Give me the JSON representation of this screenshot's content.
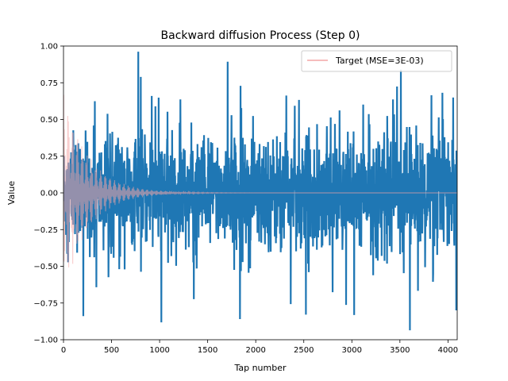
{
  "chart_data": {
    "type": "line",
    "title": "Backward diffusion Process (Step 0)",
    "xlabel": "Tap number",
    "ylabel": "Value",
    "xlim": [
      0,
      4096
    ],
    "ylim": [
      -1.0,
      1.0
    ],
    "xticks": [
      0,
      500,
      1000,
      1500,
      2000,
      2500,
      3000,
      3500,
      4000
    ],
    "xtick_labels": [
      "0",
      "500",
      "1000",
      "1500",
      "2000",
      "2500",
      "3000",
      "3500",
      "4000"
    ],
    "yticks": [
      -1.0,
      -0.75,
      -0.5,
      -0.25,
      0.0,
      0.25,
      0.5,
      0.75,
      1.0
    ],
    "ytick_labels": [
      "−1.00",
      "−0.75",
      "−0.50",
      "−0.25",
      "0.00",
      "0.25",
      "0.50",
      "0.75",
      "1.00"
    ],
    "grid": false,
    "legend_position": "top-right",
    "series": [
      {
        "name": "",
        "color": "#1f77b4",
        "description_values": "noisy signal, dense oscillation between about -0.5 and 0.5 with spikes",
        "num_points": 4096,
        "x_range": [
          0,
          4096
        ],
        "typical_amplitude": 0.45,
        "max_value": 1.0,
        "min_value": -0.95
      },
      {
        "name": "Target (MSE=3E-03)",
        "color": "#f4a6a6",
        "num_points": 4096,
        "x_range": [
          0,
          4096
        ],
        "initial_amplitude": 0.7,
        "decay_to_zero_by": 2000
      }
    ]
  }
}
